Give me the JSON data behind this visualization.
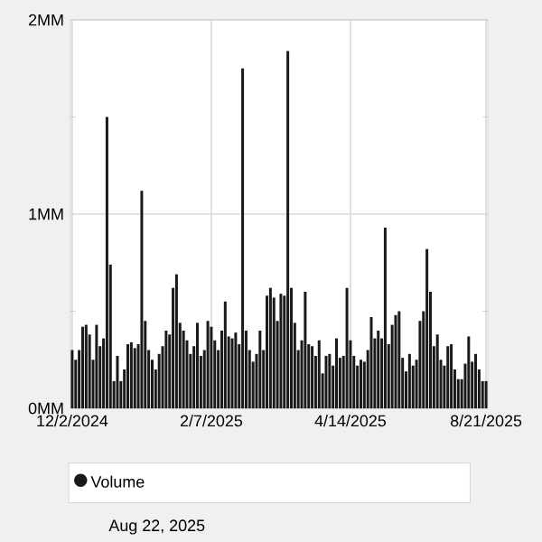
{
  "chart_data": {
    "type": "bar",
    "categories": [
      "12/2/2024",
      null,
      null,
      null,
      null,
      null,
      null,
      null,
      null,
      null,
      null,
      null,
      null,
      null,
      null,
      null,
      null,
      null,
      null,
      null,
      null,
      null,
      null,
      null,
      null,
      null,
      null,
      null,
      null,
      null,
      null,
      null,
      null,
      null,
      null,
      null,
      null,
      null,
      null,
      null,
      "2/7/2025",
      null,
      null,
      null,
      null,
      null,
      null,
      null,
      null,
      null,
      null,
      null,
      null,
      null,
      null,
      null,
      null,
      null,
      null,
      null,
      null,
      null,
      null,
      null,
      null,
      null,
      null,
      null,
      null,
      null,
      null,
      null,
      null,
      null,
      null,
      null,
      null,
      null,
      null,
      null,
      "4/14/2025",
      null,
      null,
      null,
      null,
      null,
      null,
      null,
      null,
      null,
      null,
      null,
      null,
      null,
      null,
      null,
      null,
      null,
      null,
      null,
      null,
      null,
      null,
      null,
      null,
      null,
      null,
      null,
      null,
      null,
      null,
      null,
      null,
      null,
      null,
      null,
      null,
      null,
      null,
      "8/21/2025"
    ],
    "series": [
      {
        "name": "Volume",
        "color": "#1a1a1a",
        "values": [
          0.3,
          0.25,
          0.3,
          0.42,
          0.43,
          0.38,
          0.25,
          0.43,
          0.32,
          0.36,
          1.5,
          0.74,
          0.14,
          0.27,
          0.14,
          0.2,
          0.33,
          0.34,
          0.31,
          0.33,
          1.12,
          0.45,
          0.3,
          0.25,
          0.2,
          0.28,
          0.32,
          0.4,
          0.38,
          0.62,
          0.69,
          0.44,
          0.4,
          0.35,
          0.28,
          0.32,
          0.44,
          0.27,
          0.3,
          0.45,
          0.42,
          0.35,
          0.3,
          0.4,
          0.55,
          0.37,
          0.36,
          0.39,
          0.33,
          1.75,
          0.4,
          0.3,
          0.24,
          0.28,
          0.4,
          0.3,
          0.58,
          0.62,
          0.57,
          0.45,
          0.59,
          0.58,
          1.84,
          0.62,
          0.44,
          0.3,
          0.35,
          0.6,
          0.33,
          0.32,
          0.27,
          0.35,
          0.18,
          0.27,
          0.28,
          0.22,
          0.36,
          0.26,
          0.27,
          0.62,
          0.35,
          0.27,
          0.22,
          0.25,
          0.24,
          0.3,
          0.47,
          0.36,
          0.4,
          0.36,
          0.93,
          0.33,
          0.43,
          0.48,
          0.5,
          0.26,
          0.19,
          0.28,
          0.22,
          0.25,
          0.45,
          0.5,
          0.82,
          0.6,
          0.32,
          0.38,
          0.25,
          0.22,
          0.32,
          0.33,
          0.2,
          0.15,
          0.15,
          0.23,
          0.37,
          0.24,
          0.28,
          0.2,
          0.14,
          0.14
        ]
      }
    ],
    "ylim": [
      0,
      2
    ],
    "yticks": [
      {
        "value": 0,
        "label": "0MM"
      },
      {
        "value": 0.5,
        "label": null
      },
      {
        "value": 1,
        "label": "1MM"
      },
      {
        "value": 1.5,
        "label": null
      },
      {
        "value": 2,
        "label": "2MM"
      }
    ],
    "grid": true,
    "legend": "bottom",
    "marker": "circle",
    "annotations": [
      "Aug 22, 2025"
    ]
  }
}
